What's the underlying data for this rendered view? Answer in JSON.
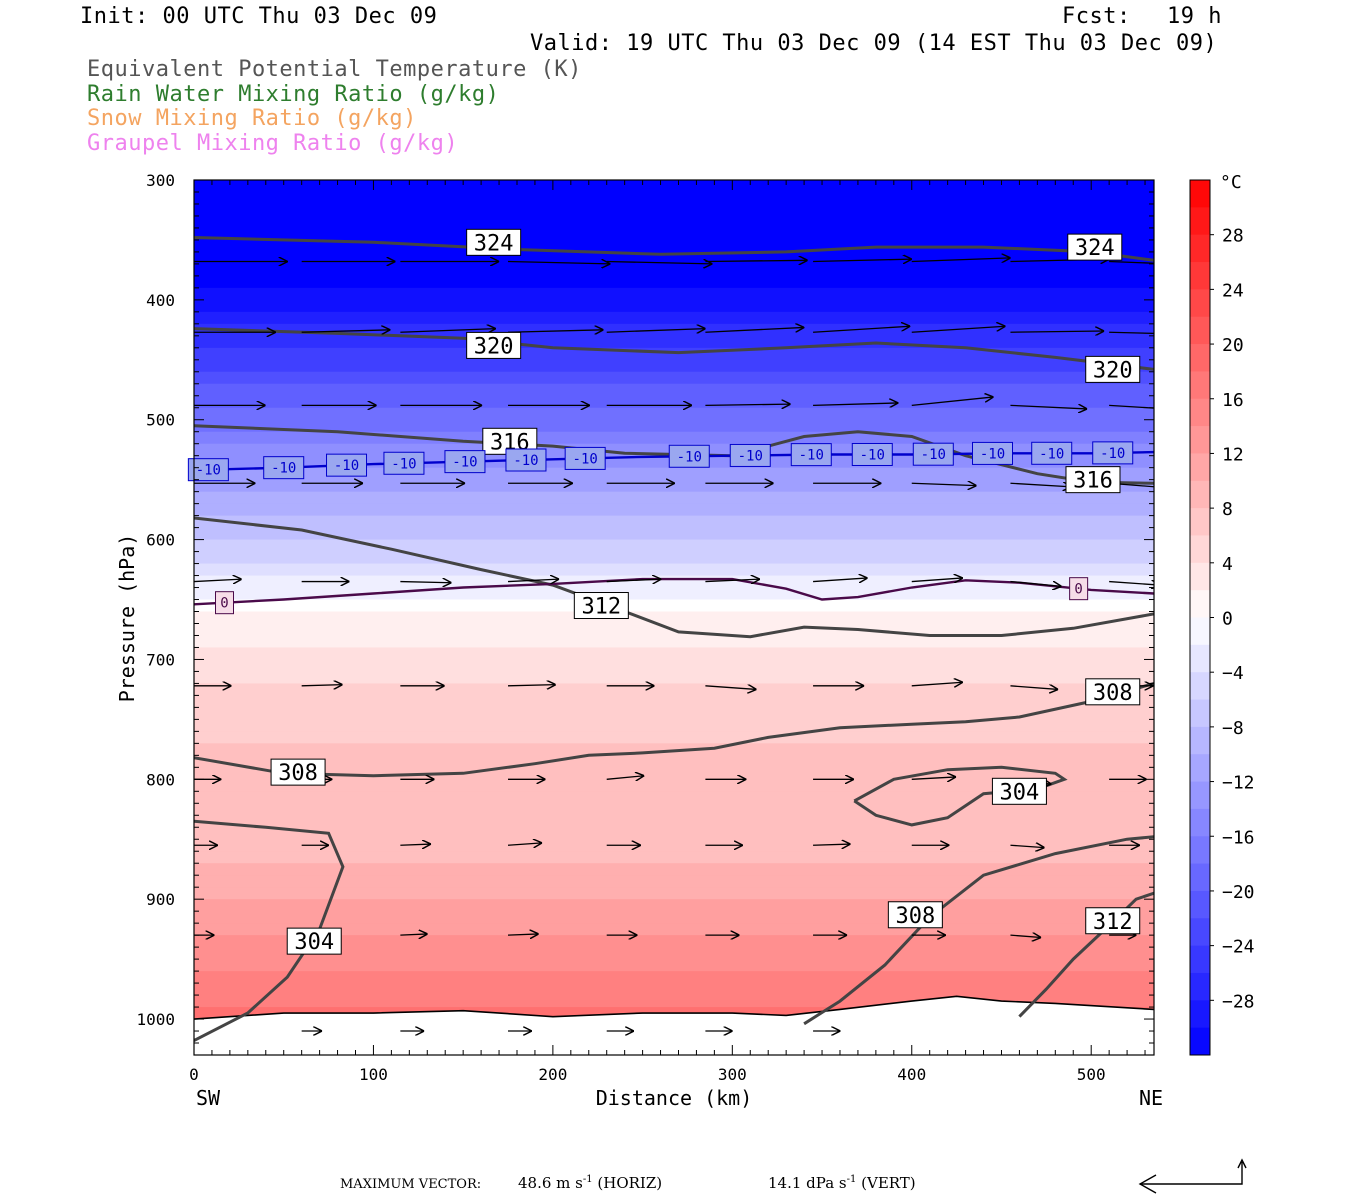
{
  "header": {
    "init": "Init: 00 UTC Thu 03 Dec 09",
    "fcst_label": "Fcst:",
    "fcst_value": "19 h",
    "valid": "Valid: 19 UTC Thu 03 Dec 09 (14 EST Thu 03 Dec 09)"
  },
  "legend": [
    {
      "label": "Equivalent Potential Temperature (K)",
      "color": "#555555"
    },
    {
      "label": "Rain Water Mixing Ratio (g/kg)",
      "color": "#2e7d2e"
    },
    {
      "label": "Snow Mixing Ratio (g/kg)",
      "color": "#f4a460"
    },
    {
      "label": "Graupel Mixing Ratio (g/kg)",
      "color": "#ee82ee"
    }
  ],
  "footer": {
    "max_vector_label": "MAXIMUM VECTOR:",
    "horiz": "48.6 m s",
    "horiz_tail": "(HORIZ)",
    "vert": "14.1 dPa s",
    "vert_tail": "(VERT)",
    "exp": "-1"
  },
  "chart_data": {
    "type": "heatmap",
    "title": "",
    "xlabel": "Distance (km)",
    "ylabel": "Pressure (hPa)",
    "xlim": [
      0,
      535
    ],
    "ylim": [
      1030,
      300
    ],
    "x_ticks": [
      0,
      100,
      200,
      300,
      400,
      500
    ],
    "y_ticks": [
      300,
      400,
      500,
      600,
      700,
      800,
      900,
      1000
    ],
    "x_end_labels": {
      "left": "SW",
      "right": "NE"
    },
    "colorbar": {
      "unit": "°C",
      "ticks": [
        28,
        24,
        20,
        16,
        12,
        8,
        4,
        0,
        -4,
        -8,
        -12,
        -16,
        -20,
        -24,
        -28
      ],
      "range": [
        -32,
        32
      ],
      "cold_color": "#0000ff",
      "neutral_color": "#ffffff",
      "warm_color": "#ff0000"
    },
    "temperature_isotherms": [
      {
        "value": -10,
        "label": "-10",
        "color": "#0000cc",
        "points": [
          [
            0,
            542
          ],
          [
            50,
            540
          ],
          [
            100,
            537
          ],
          [
            150,
            535
          ],
          [
            200,
            533
          ],
          [
            250,
            531
          ],
          [
            300,
            530
          ],
          [
            350,
            529
          ],
          [
            400,
            529
          ],
          [
            450,
            528
          ],
          [
            500,
            528
          ],
          [
            535,
            527
          ]
        ]
      },
      {
        "value": 0,
        "label": "0",
        "color": "#4a0a4a",
        "points": [
          [
            0,
            654
          ],
          [
            50,
            650
          ],
          [
            100,
            645
          ],
          [
            150,
            640
          ],
          [
            200,
            637
          ],
          [
            250,
            633
          ],
          [
            300,
            633
          ],
          [
            330,
            641
          ],
          [
            350,
            650
          ],
          [
            370,
            648
          ],
          [
            400,
            640
          ],
          [
            430,
            634
          ],
          [
            460,
            636
          ],
          [
            500,
            642
          ],
          [
            535,
            645
          ]
        ]
      }
    ],
    "theta_e_contours": [
      {
        "value": 324,
        "points": [
          [
            0,
            348
          ],
          [
            100,
            352
          ],
          [
            180,
            358
          ],
          [
            260,
            362
          ],
          [
            330,
            360
          ],
          [
            380,
            356
          ],
          [
            440,
            356
          ],
          [
            500,
            360
          ],
          [
            535,
            367
          ]
        ]
      },
      {
        "value": 320,
        "points": [
          [
            0,
            424
          ],
          [
            80,
            428
          ],
          [
            150,
            432
          ],
          [
            200,
            440
          ],
          [
            270,
            444
          ],
          [
            330,
            440
          ],
          [
            380,
            436
          ],
          [
            430,
            440
          ],
          [
            480,
            448
          ],
          [
            535,
            458
          ]
        ]
      },
      {
        "value": 316,
        "points": [
          [
            0,
            505
          ],
          [
            80,
            510
          ],
          [
            150,
            518
          ],
          [
            200,
            522
          ],
          [
            240,
            528
          ],
          [
            300,
            530
          ],
          [
            340,
            514
          ],
          [
            370,
            510
          ],
          [
            400,
            514
          ],
          [
            430,
            530
          ],
          [
            470,
            545
          ],
          [
            500,
            552
          ],
          [
            535,
            553
          ]
        ]
      },
      {
        "value": 312,
        "points": [
          [
            0,
            582
          ],
          [
            60,
            592
          ],
          [
            110,
            608
          ],
          [
            160,
            625
          ],
          [
            200,
            638
          ],
          [
            240,
            660
          ],
          [
            270,
            677
          ],
          [
            310,
            681
          ],
          [
            340,
            673
          ],
          [
            370,
            675
          ],
          [
            410,
            680
          ],
          [
            450,
            680
          ],
          [
            490,
            674
          ],
          [
            535,
            662
          ]
        ]
      },
      {
        "value": 308,
        "points": [
          [
            0,
            782
          ],
          [
            50,
            795
          ],
          [
            100,
            797
          ],
          [
            150,
            795
          ],
          [
            190,
            787
          ],
          [
            220,
            780
          ],
          [
            250,
            778
          ],
          [
            290,
            774
          ],
          [
            320,
            765
          ],
          [
            360,
            757
          ],
          [
            400,
            754
          ],
          [
            430,
            752
          ],
          [
            460,
            748
          ],
          [
            500,
            735
          ],
          [
            535,
            720
          ]
        ]
      },
      {
        "value": 304,
        "points": [
          [
            0,
            835
          ],
          [
            40,
            840
          ],
          [
            75,
            845
          ],
          [
            83,
            873
          ],
          [
            70,
            925
          ],
          [
            52,
            965
          ],
          [
            30,
            995
          ],
          [
            0,
            1018
          ]
        ]
      },
      {
        "value": 304,
        "points": [
          [
            368,
            818
          ],
          [
            390,
            800
          ],
          [
            420,
            792
          ],
          [
            450,
            790
          ],
          [
            480,
            795
          ],
          [
            485,
            800
          ],
          [
            470,
            808
          ],
          [
            440,
            812
          ],
          [
            420,
            832
          ],
          [
            400,
            838
          ],
          [
            380,
            830
          ],
          [
            368,
            818
          ]
        ]
      },
      {
        "value": 308,
        "points": [
          [
            340,
            1004
          ],
          [
            360,
            985
          ],
          [
            385,
            955
          ],
          [
            410,
            915
          ],
          [
            440,
            880
          ],
          [
            480,
            862
          ],
          [
            520,
            850
          ],
          [
            535,
            848
          ]
        ]
      },
      {
        "value": 312,
        "points": [
          [
            460,
            998
          ],
          [
            475,
            975
          ],
          [
            490,
            950
          ],
          [
            510,
            922
          ],
          [
            525,
            900
          ],
          [
            535,
            895
          ]
        ]
      }
    ],
    "contour_labels": [
      {
        "text": "324",
        "x": 167,
        "p": 352
      },
      {
        "text": "324",
        "x": 502,
        "p": 356
      },
      {
        "text": "320",
        "x": 167,
        "p": 438
      },
      {
        "text": "320",
        "x": 512,
        "p": 458
      },
      {
        "text": "316",
        "x": 176,
        "p": 518
      },
      {
        "text": "316",
        "x": 501,
        "p": 550
      },
      {
        "text": "312",
        "x": 227,
        "p": 655
      },
      {
        "text": "308",
        "x": 512,
        "p": 727
      },
      {
        "text": "308",
        "x": 58,
        "p": 794
      },
      {
        "text": "304",
        "x": 460,
        "p": 810
      },
      {
        "text": "304",
        "x": 67,
        "p": 935
      },
      {
        "text": "308",
        "x": 402,
        "p": 913
      },
      {
        "text": "312",
        "x": 512,
        "p": 918
      }
    ],
    "isotherm_labels": {
      "-10": [
        8,
        50,
        85,
        117,
        151,
        185,
        218,
        276,
        310,
        344,
        378,
        412,
        445,
        478,
        512
      ],
      "0": [
        17,
        493
      ]
    },
    "surface_pressure": [
      [
        0,
        1000
      ],
      [
        50,
        995
      ],
      [
        100,
        995
      ],
      [
        150,
        993
      ],
      [
        200,
        998
      ],
      [
        250,
        995
      ],
      [
        300,
        995
      ],
      [
        330,
        997
      ],
      [
        360,
        992
      ],
      [
        400,
        985
      ],
      [
        425,
        981
      ],
      [
        450,
        985
      ],
      [
        480,
        987
      ],
      [
        535,
        992
      ]
    ],
    "wind_vectors": {
      "levels": [
        {
          "p": 368,
          "x": [
            0,
            60,
            115,
            175,
            230,
            285,
            345,
            400,
            455,
            510
          ],
          "u": [
            55,
            55,
            58,
            60,
            62,
            60,
            58,
            58,
            58,
            55
          ],
          "v": [
            0,
            0,
            0,
            2,
            2,
            -1,
            -2,
            -3,
            -2,
            3
          ]
        },
        {
          "p": 427,
          "x": [
            0,
            60,
            115,
            175,
            230,
            285,
            345,
            400,
            455,
            510
          ],
          "u": [
            48,
            52,
            56,
            56,
            58,
            58,
            57,
            55,
            55,
            55
          ],
          "v": [
            0,
            -2,
            -3,
            -2,
            -3,
            -4,
            -5,
            -5,
            -1,
            2
          ]
        },
        {
          "p": 488,
          "x": [
            0,
            60,
            115,
            175,
            230,
            285,
            345,
            400,
            455,
            510
          ],
          "u": [
            42,
            44,
            48,
            48,
            50,
            50,
            50,
            48,
            45,
            45
          ],
          "v": [
            0,
            0,
            0,
            0,
            0,
            -1,
            -2,
            -7,
            3,
            4
          ]
        },
        {
          "p": 553,
          "x": [
            0,
            60,
            115,
            175,
            230,
            285,
            345,
            400,
            455,
            510
          ],
          "u": [
            36,
            36,
            38,
            38,
            40,
            40,
            40,
            38,
            36,
            36
          ],
          "v": [
            0,
            0,
            0,
            0,
            0,
            0,
            0,
            2,
            3,
            4
          ]
        },
        {
          "p": 635,
          "x": [
            0,
            60,
            115,
            175,
            230,
            285,
            345,
            400,
            455,
            510
          ],
          "u": [
            28,
            28,
            30,
            30,
            32,
            32,
            32,
            30,
            30,
            30
          ],
          "v": [
            -2,
            0,
            1,
            -2,
            -2,
            -2,
            -3,
            -3,
            4,
            3
          ]
        },
        {
          "p": 722,
          "x": [
            0,
            60,
            115,
            175,
            230,
            285,
            345,
            400,
            455,
            510
          ],
          "u": [
            22,
            24,
            26,
            28,
            28,
            30,
            30,
            30,
            28,
            26
          ],
          "v": [
            0,
            -1,
            0,
            -1,
            0,
            3,
            0,
            -3,
            3,
            0
          ]
        },
        {
          "p": 800,
          "x": [
            0,
            60,
            115,
            175,
            230,
            285,
            345,
            400,
            455,
            510
          ],
          "u": [
            16,
            18,
            20,
            22,
            22,
            24,
            24,
            26,
            24,
            22
          ],
          "v": [
            0,
            0,
            0,
            0,
            -3,
            0,
            0,
            -2,
            4,
            0
          ]
        },
        {
          "p": 855,
          "x": [
            0,
            60,
            115,
            175,
            230,
            285,
            345,
            400,
            455,
            510
          ],
          "u": [
            14,
            16,
            18,
            20,
            20,
            22,
            22,
            22,
            20,
            18
          ],
          "v": [
            0,
            0,
            -1,
            -2,
            0,
            0,
            -1,
            0,
            2,
            0
          ]
        },
        {
          "p": 930,
          "x": [
            0,
            60,
            115,
            175,
            230,
            285,
            345,
            400,
            455,
            510
          ],
          "u": [
            12,
            14,
            16,
            18,
            18,
            20,
            20,
            20,
            18,
            16
          ],
          "v": [
            0,
            0,
            -1,
            -1,
            0,
            0,
            0,
            0,
            2,
            0
          ]
        },
        {
          "p": 1010,
          "x": [
            60,
            115,
            175,
            230,
            285,
            345
          ],
          "u": [
            12,
            14,
            14,
            16,
            16,
            16
          ],
          "v": [
            0,
            0,
            0,
            0,
            0,
            0
          ]
        }
      ]
    },
    "temperature_field": {
      "note": "Temperature (°C) profile by pressure, roughly horizontally uniform",
      "profile": [
        [
          300,
          -42
        ],
        [
          350,
          -36
        ],
        [
          400,
          -30
        ],
        [
          450,
          -24
        ],
        [
          500,
          -18
        ],
        [
          550,
          -12
        ],
        [
          600,
          -7
        ],
        [
          640,
          -2
        ],
        [
          660,
          1
        ],
        [
          700,
          4
        ],
        [
          750,
          6
        ],
        [
          800,
          8
        ],
        [
          850,
          8
        ],
        [
          900,
          11
        ],
        [
          950,
          14
        ],
        [
          1000,
          18
        ]
      ]
    }
  }
}
